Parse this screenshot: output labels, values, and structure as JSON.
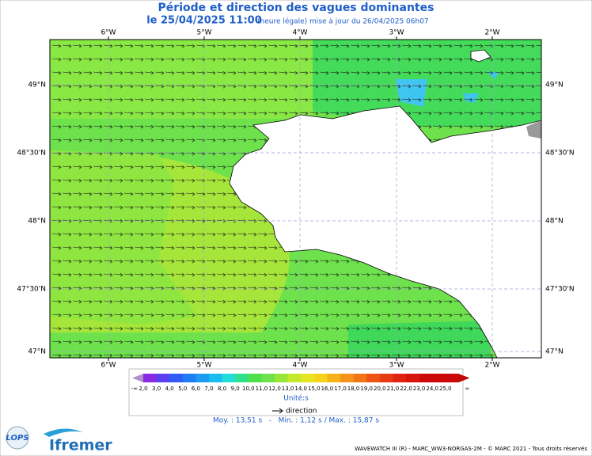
{
  "header": {
    "title": "Période et direction des vagues dominantes",
    "date": "le 25/04/2025 11:00",
    "note": "(heure légale) mise à jour du 26/04/2025 06h07"
  },
  "map": {
    "lon_labels": [
      "6°W",
      "5°W",
      "4°W",
      "3°W",
      "2°W"
    ],
    "lat_labels": [
      "49°N",
      "48°30'N",
      "48°N",
      "47°30'N",
      "47°N"
    ]
  },
  "legend": {
    "scale_labels": [
      "-∞",
      "2,0",
      "3,0",
      "4,0",
      "5,0",
      "6,0",
      "7,0",
      "8,0",
      "9,0",
      "10,0",
      "11,0",
      "12,0",
      "13,0",
      "14,0",
      "15,0",
      "16,0",
      "17,0",
      "18,0",
      "19,0",
      "20,0",
      "21,0",
      "22,0",
      "23,0",
      "24,0",
      "25,0",
      "∞"
    ],
    "unit": "Unité:s",
    "direction": "direction"
  },
  "stats": "Moy. : 13,51 s   -   Min. : 1,12 s / Max. : 15,87 s",
  "logos": [
    "LOPS",
    "Ifremer"
  ],
  "footer": "WAVEWATCH III (R) - MARC_WW3-NORGAS-2M - © MARC 2021 - Tous droits réservés"
}
